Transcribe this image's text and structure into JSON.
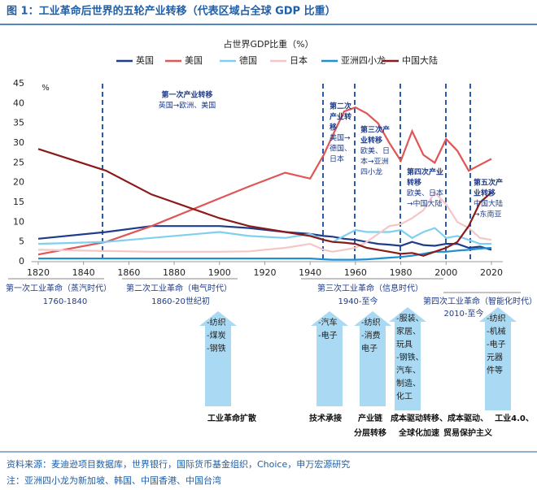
{
  "chart_data": {
    "type": "line",
    "title": "图 1：工业革命后世界的五轮产业转移（代表区域占全球 GDP 比重）",
    "subtitle": "占世界GDP比重（%）",
    "y_unit": "%",
    "x": [
      1820,
      1850,
      1870,
      1900,
      1913,
      1929,
      1940,
      1946,
      1950,
      1955,
      1960,
      1965,
      1970,
      1975,
      1980,
      1985,
      1990,
      1995,
      2000,
      2005,
      2010,
      2015,
      2020
    ],
    "series": [
      {
        "name": "英国",
        "color": "#1f3c88",
        "values": [
          5.8,
          7.5,
          9.0,
          9.0,
          8.5,
          7.5,
          7.0,
          6.5,
          6.3,
          5.8,
          5.5,
          5.0,
          4.5,
          4.3,
          4.0,
          5.0,
          4.2,
          4.0,
          4.5,
          4.5,
          3.5,
          3.8,
          3.0
        ]
      },
      {
        "name": "美国",
        "color": "#e05555",
        "values": [
          1.8,
          5.0,
          9.0,
          16.0,
          19.0,
          22.5,
          21.0,
          27.0,
          32.0,
          38.0,
          39.0,
          37.5,
          35.0,
          30.0,
          25.5,
          33.0,
          27.0,
          25.0,
          31.0,
          28.0,
          23.0,
          24.5,
          26.0
        ]
      },
      {
        "name": "德国",
        "color": "#7fcff0",
        "values": [
          4.5,
          5.0,
          6.0,
          7.5,
          6.5,
          6.0,
          7.0,
          5.5,
          5.0,
          6.5,
          8.0,
          7.5,
          7.5,
          7.5,
          8.0,
          6.0,
          7.5,
          8.5,
          6.0,
          6.5,
          5.5,
          4.5,
          4.5
        ]
      },
      {
        "name": "日本",
        "color": "#f6c6c6",
        "values": [
          3.0,
          2.7,
          2.5,
          2.5,
          2.6,
          3.5,
          4.5,
          3.0,
          2.5,
          3.0,
          3.5,
          5.0,
          7.0,
          9.0,
          9.5,
          11.0,
          13.0,
          17.5,
          14.5,
          10.0,
          8.5,
          6.0,
          5.5
        ]
      },
      {
        "name": "亚洲四小龙",
        "color": "#1e90d0",
        "values": [
          0.8,
          0.8,
          0.8,
          0.8,
          0.8,
          0.8,
          0.8,
          0.6,
          0.5,
          0.5,
          0.5,
          0.6,
          0.8,
          1.0,
          1.2,
          1.5,
          2.0,
          2.5,
          2.5,
          2.8,
          3.0,
          3.3,
          3.5
        ]
      },
      {
        "name": "中国大陆",
        "color": "#8b1a1a",
        "values": [
          28.5,
          23.0,
          17.0,
          11.0,
          9.0,
          7.5,
          6.5,
          5.5,
          5.0,
          4.8,
          4.5,
          3.5,
          3.0,
          2.5,
          2.0,
          2.2,
          1.5,
          2.5,
          3.5,
          5.0,
          9.0,
          15.0,
          17.5
        ]
      }
    ],
    "xlim": [
      1817,
      2025
    ],
    "xticks": [
      1820,
      1840,
      1860,
      1880,
      1900,
      1920,
      1940,
      1960,
      1980,
      2000,
      2020
    ],
    "ylim": [
      0,
      45
    ],
    "yticks": [
      0,
      5,
      10,
      15,
      20,
      25,
      30,
      35,
      40,
      45
    ],
    "grid": false,
    "annotations": [
      {
        "lines": [
          "第一次产业转移",
          "英国→欧洲、美国"
        ]
      },
      {
        "lines": [
          "第二次",
          "产业转",
          "移",
          "美国→",
          "德国、",
          "日本"
        ]
      },
      {
        "lines": [
          "第三次产",
          "业转移",
          "欧美、日",
          "本→亚洲",
          "四小龙"
        ]
      },
      {
        "lines": [
          "第四次产业",
          "转移",
          "欧美、日本",
          "→中国大陆"
        ]
      },
      {
        "lines": [
          "第五次产",
          "业转移",
          "中国大陆",
          "→东南亚"
        ]
      }
    ]
  },
  "eras": [
    {
      "name": "第一次工业革命（蒸汽时代）",
      "period": "1760-1840"
    },
    {
      "name": "第二次工业革命（电气时代）",
      "period": "1860-20世纪初"
    },
    {
      "name": "第三次工业革命（信息时代）",
      "period": "1940-至今"
    },
    {
      "name": "第四次工业革命（智能化时代）",
      "period": "2010-至今"
    }
  ],
  "arrows": [
    {
      "lines": [
        "-纺织",
        "-煤炭",
        "-钢铁"
      ]
    },
    {
      "lines": [
        "-汽车",
        "-电子"
      ]
    },
    {
      "lines": [
        "-纺织",
        "-消费",
        "电子"
      ]
    },
    {
      "lines": [
        "-服装、",
        "家居、",
        "玩具",
        "-钢铁、",
        "汽车、",
        "制造、",
        "化工"
      ]
    },
    {
      "lines": [
        "-纺织",
        "-机械",
        "-电子",
        "元器",
        "件等"
      ]
    }
  ],
  "drivers": [
    {
      "lines": [
        "工业革命扩散"
      ]
    },
    {
      "lines": [
        "技术承接"
      ]
    },
    {
      "lines": [
        "产业链",
        "分层转移"
      ]
    },
    {
      "lines": [
        "成本驱动转移、",
        "全球化加速"
      ]
    },
    {
      "lines": [
        "成本驱动、",
        "贸易保护主义"
      ]
    },
    {
      "lines": [
        "工业4.0、"
      ]
    }
  ],
  "footer": {
    "source": "资料来源：麦迪逊项目数据库，世界银行，国际货币基金组织，Choice，申万宏源研究",
    "note": "注：亚洲四小龙为新加坡、韩国、中国香港、中国台湾"
  }
}
